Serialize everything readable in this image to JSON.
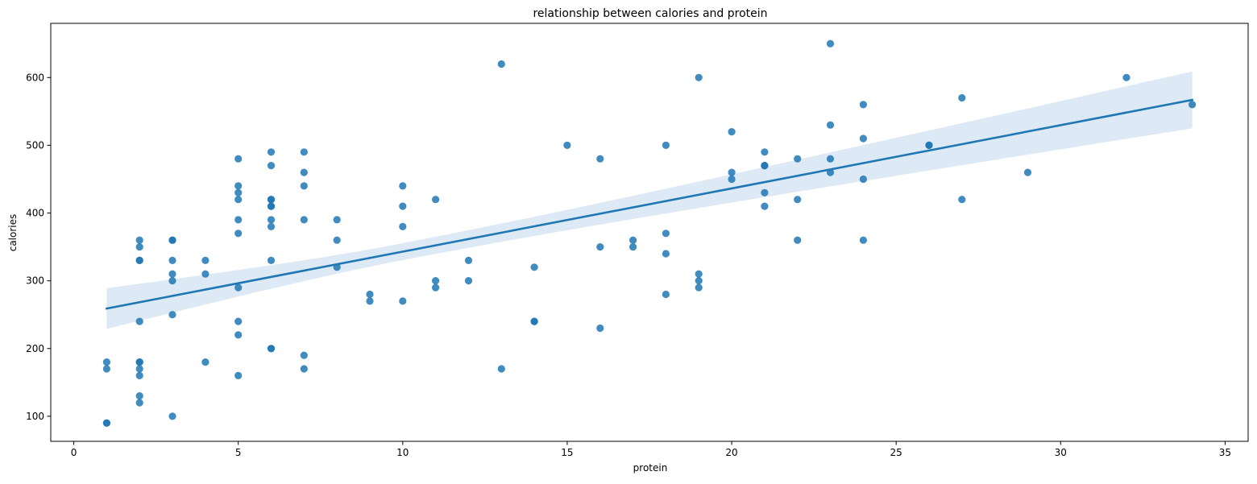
{
  "chart_data": {
    "type": "scatter",
    "title": "relationship between calories and protein",
    "xlabel": "protein",
    "ylabel": "calories",
    "xlim": [
      -0.7,
      35.7
    ],
    "ylim": [
      63,
      680
    ],
    "xticks": [
      0,
      5,
      10,
      15,
      20,
      25,
      30,
      35
    ],
    "yticks": [
      100,
      200,
      300,
      400,
      500,
      600
    ],
    "grid": false,
    "colors": {
      "points": "#1f77b4",
      "line": "#1f77b4",
      "band": "#c6dbef"
    },
    "points": [
      {
        "x": 1,
        "y": 180
      },
      {
        "x": 1,
        "y": 170
      },
      {
        "x": 1,
        "y": 90
      },
      {
        "x": 1,
        "y": 90
      },
      {
        "x": 2,
        "y": 360
      },
      {
        "x": 2,
        "y": 350
      },
      {
        "x": 2,
        "y": 330
      },
      {
        "x": 2,
        "y": 330
      },
      {
        "x": 2,
        "y": 240
      },
      {
        "x": 2,
        "y": 180
      },
      {
        "x": 2,
        "y": 180
      },
      {
        "x": 2,
        "y": 170
      },
      {
        "x": 2,
        "y": 160
      },
      {
        "x": 2,
        "y": 130
      },
      {
        "x": 2,
        "y": 120
      },
      {
        "x": 3,
        "y": 360
      },
      {
        "x": 3,
        "y": 360
      },
      {
        "x": 3,
        "y": 330
      },
      {
        "x": 3,
        "y": 310
      },
      {
        "x": 3,
        "y": 300
      },
      {
        "x": 3,
        "y": 250
      },
      {
        "x": 3,
        "y": 100
      },
      {
        "x": 4,
        "y": 330
      },
      {
        "x": 4,
        "y": 310
      },
      {
        "x": 4,
        "y": 180
      },
      {
        "x": 5,
        "y": 480
      },
      {
        "x": 5,
        "y": 440
      },
      {
        "x": 5,
        "y": 430
      },
      {
        "x": 5,
        "y": 420
      },
      {
        "x": 5,
        "y": 390
      },
      {
        "x": 5,
        "y": 370
      },
      {
        "x": 5,
        "y": 290
      },
      {
        "x": 5,
        "y": 240
      },
      {
        "x": 5,
        "y": 220
      },
      {
        "x": 5,
        "y": 160
      },
      {
        "x": 6,
        "y": 490
      },
      {
        "x": 6,
        "y": 470
      },
      {
        "x": 6,
        "y": 420
      },
      {
        "x": 6,
        "y": 420
      },
      {
        "x": 6,
        "y": 410
      },
      {
        "x": 6,
        "y": 410
      },
      {
        "x": 6,
        "y": 390
      },
      {
        "x": 6,
        "y": 380
      },
      {
        "x": 6,
        "y": 330
      },
      {
        "x": 6,
        "y": 200
      },
      {
        "x": 6,
        "y": 200
      },
      {
        "x": 7,
        "y": 490
      },
      {
        "x": 7,
        "y": 460
      },
      {
        "x": 7,
        "y": 440
      },
      {
        "x": 7,
        "y": 390
      },
      {
        "x": 7,
        "y": 190
      },
      {
        "x": 7,
        "y": 170
      },
      {
        "x": 8,
        "y": 390
      },
      {
        "x": 8,
        "y": 360
      },
      {
        "x": 8,
        "y": 320
      },
      {
        "x": 9,
        "y": 280
      },
      {
        "x": 9,
        "y": 270
      },
      {
        "x": 10,
        "y": 440
      },
      {
        "x": 10,
        "y": 410
      },
      {
        "x": 10,
        "y": 380
      },
      {
        "x": 10,
        "y": 270
      },
      {
        "x": 11,
        "y": 420
      },
      {
        "x": 11,
        "y": 300
      },
      {
        "x": 11,
        "y": 290
      },
      {
        "x": 12,
        "y": 330
      },
      {
        "x": 12,
        "y": 300
      },
      {
        "x": 13,
        "y": 620
      },
      {
        "x": 13,
        "y": 170
      },
      {
        "x": 14,
        "y": 320
      },
      {
        "x": 14,
        "y": 240
      },
      {
        "x": 14,
        "y": 240
      },
      {
        "x": 15,
        "y": 500
      },
      {
        "x": 16,
        "y": 480
      },
      {
        "x": 16,
        "y": 350
      },
      {
        "x": 16,
        "y": 230
      },
      {
        "x": 17,
        "y": 360
      },
      {
        "x": 17,
        "y": 350
      },
      {
        "x": 18,
        "y": 500
      },
      {
        "x": 18,
        "y": 370
      },
      {
        "x": 18,
        "y": 340
      },
      {
        "x": 18,
        "y": 280
      },
      {
        "x": 19,
        "y": 600
      },
      {
        "x": 19,
        "y": 310
      },
      {
        "x": 19,
        "y": 300
      },
      {
        "x": 19,
        "y": 290
      },
      {
        "x": 20,
        "y": 520
      },
      {
        "x": 20,
        "y": 460
      },
      {
        "x": 20,
        "y": 450
      },
      {
        "x": 21,
        "y": 490
      },
      {
        "x": 21,
        "y": 470
      },
      {
        "x": 21,
        "y": 470
      },
      {
        "x": 21,
        "y": 430
      },
      {
        "x": 21,
        "y": 410
      },
      {
        "x": 22,
        "y": 480
      },
      {
        "x": 22,
        "y": 420
      },
      {
        "x": 22,
        "y": 360
      },
      {
        "x": 23,
        "y": 650
      },
      {
        "x": 23,
        "y": 530
      },
      {
        "x": 23,
        "y": 480
      },
      {
        "x": 23,
        "y": 460
      },
      {
        "x": 24,
        "y": 560
      },
      {
        "x": 24,
        "y": 510
      },
      {
        "x": 24,
        "y": 450
      },
      {
        "x": 24,
        "y": 360
      },
      {
        "x": 26,
        "y": 500
      },
      {
        "x": 26,
        "y": 500
      },
      {
        "x": 27,
        "y": 570
      },
      {
        "x": 27,
        "y": 420
      },
      {
        "x": 29,
        "y": 460
      },
      {
        "x": 32,
        "y": 600
      },
      {
        "x": 34,
        "y": 560
      }
    ],
    "regression": {
      "x": [
        1,
        34
      ],
      "y": [
        259,
        567
      ],
      "ci_lower": [
        229,
        524
      ],
      "ci_upper": [
        289,
        608
      ],
      "ci_mid": [
        10,
        330,
        355
      ]
    }
  }
}
